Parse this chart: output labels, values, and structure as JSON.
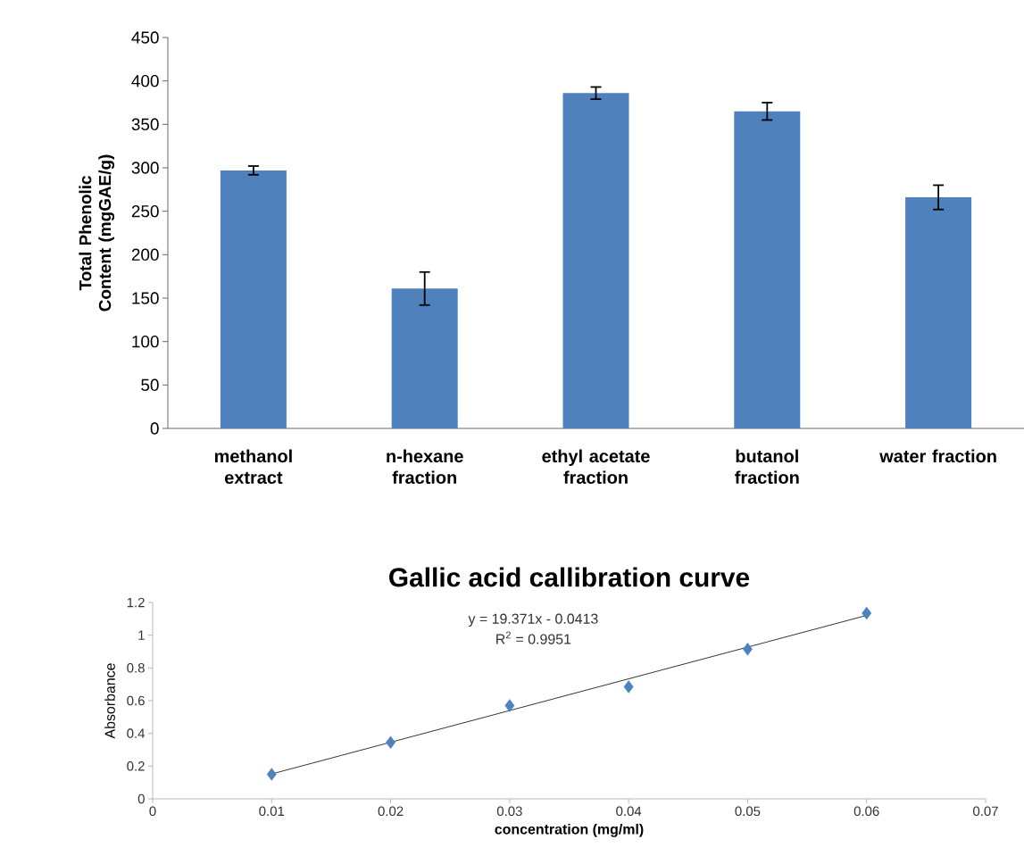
{
  "chart_data": [
    {
      "type": "bar",
      "ylabel": "Total Phenolic Content (mgGAE/g)",
      "categories": [
        "methanol extract",
        "n-hexane fraction",
        "ethyl acetate fraction",
        "butanol fraction",
        "water fraction"
      ],
      "values": [
        297,
        161,
        386,
        365,
        266
      ],
      "errors": [
        5,
        19,
        7,
        10,
        14
      ],
      "color": "#4f81bd",
      "ylim": [
        0,
        450
      ],
      "yticks": [
        0,
        50,
        100,
        150,
        200,
        250,
        300,
        350,
        400,
        450
      ]
    },
    {
      "type": "scatter",
      "title": "Gallic acid callibration curve",
      "xlabel": "concentration (mg/ml)",
      "ylabel": "Absorbance",
      "marker": "diamond",
      "xlim": [
        0,
        0.07
      ],
      "xticks": [
        0,
        0.01,
        0.02,
        0.03,
        0.04,
        0.05,
        0.06,
        0.07
      ],
      "ylim": [
        0,
        1.2
      ],
      "yticks": [
        0,
        0.2,
        0.4,
        0.6,
        0.8,
        1,
        1.2
      ],
      "series": [
        {
          "color": "#4f81bd",
          "x": [
            0.01,
            0.02,
            0.03,
            0.04,
            0.05,
            0.06
          ],
          "values": [
            0.15,
            0.345,
            0.57,
            0.685,
            0.915,
            1.135
          ]
        },
        {
          "type": "line",
          "marker": "none",
          "color": "#000000",
          "x": [
            0.01,
            0.06
          ],
          "values": [
            0.152,
            1.121
          ]
        }
      ],
      "annotations": [
        "y = 19.371x - 0.0413",
        "R$^{2}$ = 0.9951"
      ]
    }
  ]
}
